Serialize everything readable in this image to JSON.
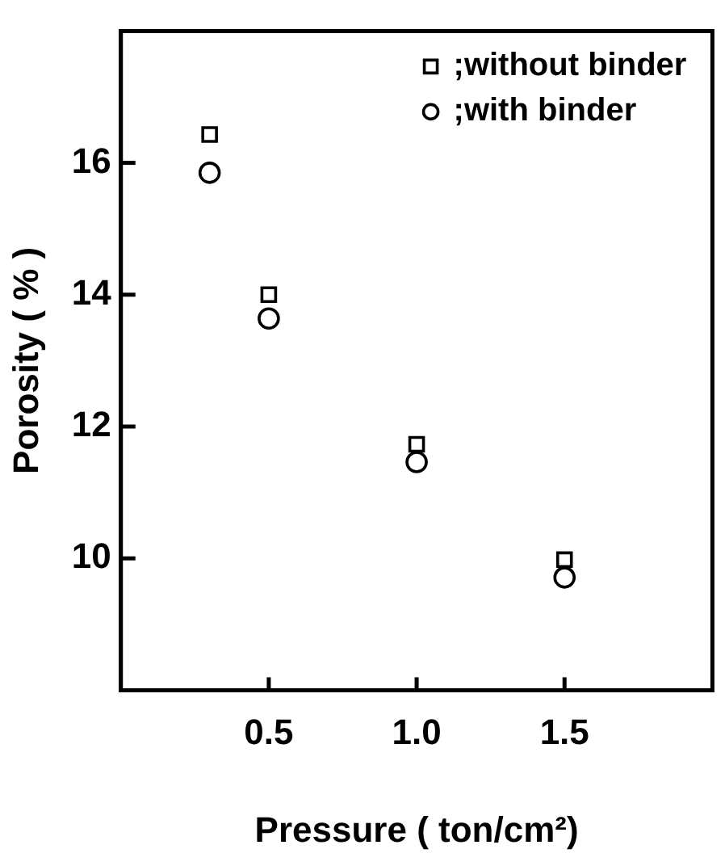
{
  "chart_data": {
    "type": "scatter",
    "xlabel": "Pressure ( ton/cm²)",
    "ylabel": "Porosity ( % )",
    "xlim": [
      0,
      2
    ],
    "xticks": [
      0.5,
      {
        "value": 1,
        "label": "1.0"
      },
      1.5
    ],
    "ylim": [
      8,
      18
    ],
    "yticks": [
      10,
      12,
      14,
      16
    ],
    "grid": false,
    "legend": "top right",
    "series": [
      {
        "name": ";without binder",
        "color": "#000000",
        "marker": "square",
        "x": [
          0.3,
          0.5,
          1.0,
          1.5
        ],
        "values": [
          16.43,
          14.0,
          11.73,
          9.98
        ]
      },
      {
        "name": ";with binder",
        "color": "#000000",
        "marker": "circle",
        "x": [
          0.3,
          0.5,
          1.0,
          1.5
        ],
        "values": [
          15.85,
          13.64,
          11.46,
          9.71
        ]
      }
    ]
  }
}
